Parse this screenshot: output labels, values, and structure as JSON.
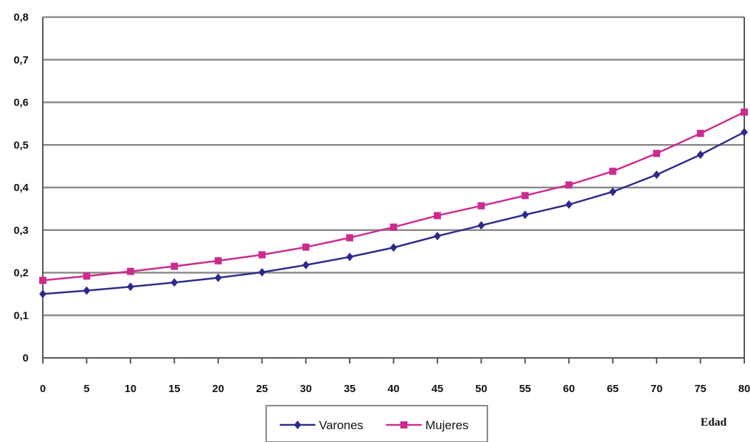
{
  "chart_data": {
    "type": "line",
    "xlabel": "Edad",
    "ylabel": "",
    "x": [
      0,
      5,
      10,
      15,
      20,
      25,
      30,
      35,
      40,
      45,
      50,
      55,
      60,
      65,
      70,
      75,
      80
    ],
    "x_tick_labels": [
      "0",
      "5",
      "10",
      "15",
      "20",
      "25",
      "30",
      "35",
      "40",
      "45",
      "50",
      "55",
      "60",
      "65",
      "70",
      "75",
      "80"
    ],
    "y_tick_labels": [
      "0",
      "0,1",
      "0,2",
      "0,3",
      "0,4",
      "0,5",
      "0,6",
      "0,7",
      "0,8"
    ],
    "xlim": [
      0,
      80
    ],
    "ylim": [
      0,
      0.8
    ],
    "grid": true,
    "legend_position": "bottom",
    "series": [
      {
        "name": "Varones",
        "color": "#2e2a8c",
        "marker": "diamond",
        "values": [
          0.15,
          0.158,
          0.167,
          0.177,
          0.188,
          0.201,
          0.218,
          0.237,
          0.259,
          0.286,
          0.311,
          0.336,
          0.36,
          0.39,
          0.43,
          0.477,
          0.53
        ]
      },
      {
        "name": "Mujeres",
        "color": "#cc2a8e",
        "marker": "square",
        "values": [
          0.182,
          0.192,
          0.203,
          0.215,
          0.228,
          0.242,
          0.26,
          0.282,
          0.307,
          0.334,
          0.357,
          0.381,
          0.406,
          0.438,
          0.48,
          0.527,
          0.577
        ]
      }
    ]
  }
}
